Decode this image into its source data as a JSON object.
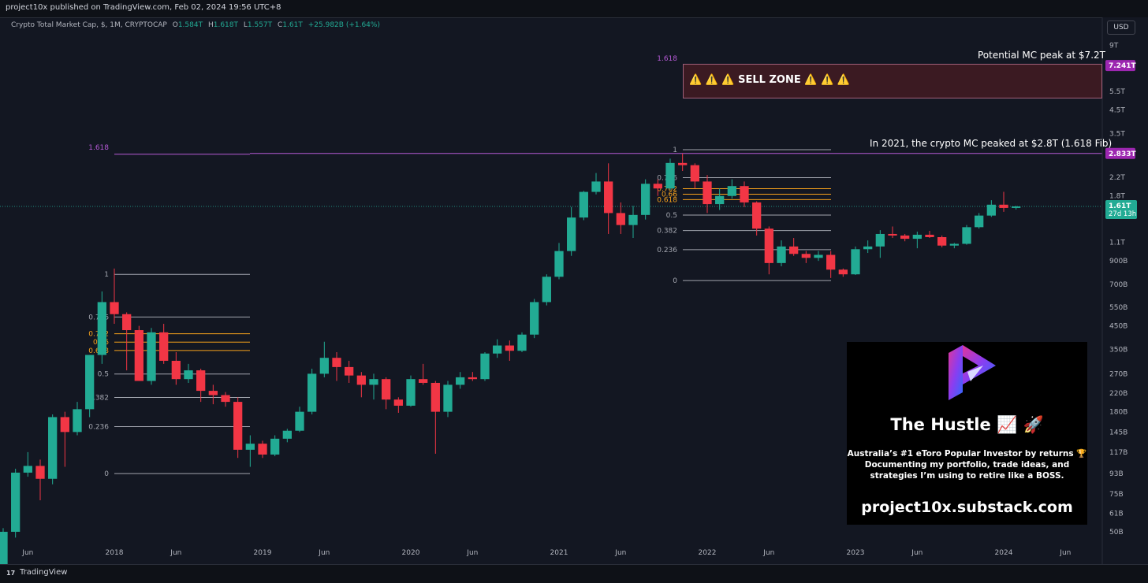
{
  "header": {
    "publisher_text": "project10x published on TradingView.com, Feb 02, 2024 19:56 UTC+8"
  },
  "legend": {
    "symbol": "Crypto Total Market Cap, $, 1M, CRYPTOCAP",
    "o_key": "O",
    "o_val": "1.584T",
    "h_key": "H",
    "h_val": "1.618T",
    "l_key": "L",
    "l_val": "1.557T",
    "c_key": "C",
    "c_val": "1.61T",
    "change": "+25.982B (+1.64%)"
  },
  "price_scale": {
    "currency_button": "USD",
    "ticks": [
      "9T",
      "5.5T",
      "4.5T",
      "3.5T",
      "2.2T",
      "1.8T",
      "1.1T",
      "900B",
      "700B",
      "550B",
      "450B",
      "350B",
      "270B",
      "220B",
      "180B",
      "145B",
      "117B",
      "93B",
      "75B",
      "61B",
      "50B"
    ],
    "price_badge": "1.61T",
    "countdown": "27d 13h",
    "level_badges": [
      "7.241T",
      "2.833T"
    ]
  },
  "time_axis": {
    "labels": [
      "Jun",
      "2018",
      "Jun",
      "2019",
      "Jun",
      "2020",
      "Jun",
      "2021",
      "Jun",
      "2022",
      "Jun",
      "2023",
      "Jun",
      "2024",
      "Jun"
    ]
  },
  "annotations": {
    "peak_2021_text": "In 2021, the crypto MC peaked at $2.8T (1.618 Fib)",
    "potential_peak_text": "Potential MC peak at $7.2T",
    "sell_zone_text": "⚠️ ⚠️ ⚠️ SELL ZONE ⚠️ ⚠️ ⚠️",
    "fib_ext_label_left": "1.618",
    "fib_ext_label_right": "1.618"
  },
  "promo": {
    "title": "The Hustle 📈 🚀",
    "description": "Australia’s #1 eToro Popular Investor by returns 🏆\nDocumenting my portfolio, trade ideas, and\nstrategies I’m using to retire like a BOSS.",
    "url": "project10x.substack.com"
  },
  "footer": {
    "brand": "TradingView",
    "logo_glyph": "17"
  },
  "colors": {
    "up": "#22ab94",
    "down": "#f23645",
    "fib_purple": "#b65ad6",
    "fib_orange": "#f7a21b",
    "background": "#131722"
  },
  "chart_data": {
    "type": "candlestick",
    "title": "Crypto Total Market Cap, $, 1M, CRYPTOCAP",
    "y_scale": "log",
    "ylim": [
      "50B",
      "9T"
    ],
    "candles": [
      {
        "t": "2017-04",
        "o": 0.028,
        "h": 0.052,
        "l": 0.027,
        "c": 0.05
      },
      {
        "t": "2017-05",
        "o": 0.05,
        "h": 0.098,
        "l": 0.047,
        "c": 0.094
      },
      {
        "t": "2017-06",
        "o": 0.094,
        "h": 0.117,
        "l": 0.09,
        "c": 0.101
      },
      {
        "t": "2017-07",
        "o": 0.101,
        "h": 0.108,
        "l": 0.07,
        "c": 0.088
      },
      {
        "t": "2017-08",
        "o": 0.088,
        "h": 0.175,
        "l": 0.083,
        "c": 0.17
      },
      {
        "t": "2017-09",
        "o": 0.17,
        "h": 0.18,
        "l": 0.1,
        "c": 0.145
      },
      {
        "t": "2017-10",
        "o": 0.145,
        "h": 0.2,
        "l": 0.14,
        "c": 0.185
      },
      {
        "t": "2017-11",
        "o": 0.185,
        "h": 0.33,
        "l": 0.17,
        "c": 0.33
      },
      {
        "t": "2017-12",
        "o": 0.33,
        "h": 0.65,
        "l": 0.3,
        "c": 0.58
      },
      {
        "t": "2018-01",
        "o": 0.58,
        "h": 0.83,
        "l": 0.46,
        "c": 0.51
      },
      {
        "t": "2018-02",
        "o": 0.51,
        "h": 0.52,
        "l": 0.28,
        "c": 0.43
      },
      {
        "t": "2018-03",
        "o": 0.43,
        "h": 0.45,
        "l": 0.25,
        "c": 0.25
      },
      {
        "t": "2018-04",
        "o": 0.25,
        "h": 0.44,
        "l": 0.24,
        "c": 0.42
      },
      {
        "t": "2018-05",
        "o": 0.42,
        "h": 0.46,
        "l": 0.3,
        "c": 0.31
      },
      {
        "t": "2018-06",
        "o": 0.31,
        "h": 0.34,
        "l": 0.24,
        "c": 0.255
      },
      {
        "t": "2018-07",
        "o": 0.255,
        "h": 0.3,
        "l": 0.245,
        "c": 0.28
      },
      {
        "t": "2018-08",
        "o": 0.28,
        "h": 0.285,
        "l": 0.2,
        "c": 0.225
      },
      {
        "t": "2018-09",
        "o": 0.225,
        "h": 0.24,
        "l": 0.195,
        "c": 0.215
      },
      {
        "t": "2018-10",
        "o": 0.215,
        "h": 0.222,
        "l": 0.19,
        "c": 0.2
      },
      {
        "t": "2018-11",
        "o": 0.2,
        "h": 0.21,
        "l": 0.11,
        "c": 0.12
      },
      {
        "t": "2018-12",
        "o": 0.12,
        "h": 0.14,
        "l": 0.1,
        "c": 0.128
      },
      {
        "t": "2019-01",
        "o": 0.128,
        "h": 0.132,
        "l": 0.11,
        "c": 0.114
      },
      {
        "t": "2019-02",
        "o": 0.114,
        "h": 0.14,
        "l": 0.112,
        "c": 0.135
      },
      {
        "t": "2019-03",
        "o": 0.135,
        "h": 0.15,
        "l": 0.13,
        "c": 0.147
      },
      {
        "t": "2019-04",
        "o": 0.147,
        "h": 0.19,
        "l": 0.145,
        "c": 0.18
      },
      {
        "t": "2019-05",
        "o": 0.18,
        "h": 0.285,
        "l": 0.175,
        "c": 0.27
      },
      {
        "t": "2019-06",
        "o": 0.27,
        "h": 0.38,
        "l": 0.26,
        "c": 0.32
      },
      {
        "t": "2019-07",
        "o": 0.32,
        "h": 0.34,
        "l": 0.25,
        "c": 0.29
      },
      {
        "t": "2019-08",
        "o": 0.29,
        "h": 0.31,
        "l": 0.245,
        "c": 0.265
      },
      {
        "t": "2019-09",
        "o": 0.265,
        "h": 0.275,
        "l": 0.21,
        "c": 0.24
      },
      {
        "t": "2019-10",
        "o": 0.24,
        "h": 0.27,
        "l": 0.205,
        "c": 0.255
      },
      {
        "t": "2019-11",
        "o": 0.255,
        "h": 0.26,
        "l": 0.185,
        "c": 0.205
      },
      {
        "t": "2019-12",
        "o": 0.205,
        "h": 0.21,
        "l": 0.178,
        "c": 0.192
      },
      {
        "t": "2020-01",
        "o": 0.192,
        "h": 0.265,
        "l": 0.19,
        "c": 0.255
      },
      {
        "t": "2020-02",
        "o": 0.255,
        "h": 0.3,
        "l": 0.24,
        "c": 0.245
      },
      {
        "t": "2020-03",
        "o": 0.245,
        "h": 0.25,
        "l": 0.115,
        "c": 0.18
      },
      {
        "t": "2020-04",
        "o": 0.18,
        "h": 0.25,
        "l": 0.17,
        "c": 0.24
      },
      {
        "t": "2020-05",
        "o": 0.24,
        "h": 0.275,
        "l": 0.23,
        "c": 0.26
      },
      {
        "t": "2020-06",
        "o": 0.26,
        "h": 0.275,
        "l": 0.25,
        "c": 0.255
      },
      {
        "t": "2020-07",
        "o": 0.255,
        "h": 0.34,
        "l": 0.25,
        "c": 0.335
      },
      {
        "t": "2020-08",
        "o": 0.335,
        "h": 0.39,
        "l": 0.32,
        "c": 0.365
      },
      {
        "t": "2020-09",
        "o": 0.365,
        "h": 0.385,
        "l": 0.31,
        "c": 0.345
      },
      {
        "t": "2020-10",
        "o": 0.345,
        "h": 0.42,
        "l": 0.34,
        "c": 0.41
      },
      {
        "t": "2020-11",
        "o": 0.41,
        "h": 0.6,
        "l": 0.395,
        "c": 0.58
      },
      {
        "t": "2020-12",
        "o": 0.58,
        "h": 0.78,
        "l": 0.56,
        "c": 0.76
      },
      {
        "t": "2021-01",
        "o": 0.76,
        "h": 1.09,
        "l": 0.74,
        "c": 1.0
      },
      {
        "t": "2021-02",
        "o": 1.0,
        "h": 1.6,
        "l": 0.95,
        "c": 1.43
      },
      {
        "t": "2021-03",
        "o": 1.43,
        "h": 1.9,
        "l": 1.39,
        "c": 1.88
      },
      {
        "t": "2021-04",
        "o": 1.88,
        "h": 2.3,
        "l": 1.83,
        "c": 2.1
      },
      {
        "t": "2021-05",
        "o": 2.1,
        "h": 2.55,
        "l": 1.2,
        "c": 1.5
      },
      {
        "t": "2021-06",
        "o": 1.5,
        "h": 1.68,
        "l": 1.2,
        "c": 1.32
      },
      {
        "t": "2021-07",
        "o": 1.32,
        "h": 1.62,
        "l": 1.15,
        "c": 1.47
      },
      {
        "t": "2021-08",
        "o": 1.47,
        "h": 2.15,
        "l": 1.4,
        "c": 2.05
      },
      {
        "t": "2021-09",
        "o": 2.05,
        "h": 2.15,
        "l": 1.8,
        "c": 1.95
      },
      {
        "t": "2021-10",
        "o": 1.95,
        "h": 2.68,
        "l": 1.92,
        "c": 2.56
      },
      {
        "t": "2021-11",
        "o": 2.56,
        "h": 2.833,
        "l": 2.35,
        "c": 2.5
      },
      {
        "t": "2021-12",
        "o": 2.5,
        "h": 2.55,
        "l": 1.95,
        "c": 2.1
      },
      {
        "t": "2022-01",
        "o": 2.1,
        "h": 2.25,
        "l": 1.5,
        "c": 1.65
      },
      {
        "t": "2022-02",
        "o": 1.65,
        "h": 1.95,
        "l": 1.55,
        "c": 1.8
      },
      {
        "t": "2022-03",
        "o": 1.8,
        "h": 2.15,
        "l": 1.75,
        "c": 2.0
      },
      {
        "t": "2022-04",
        "o": 2.0,
        "h": 2.1,
        "l": 1.6,
        "c": 1.68
      },
      {
        "t": "2022-05",
        "o": 1.68,
        "h": 1.7,
        "l": 1.18,
        "c": 1.27
      },
      {
        "t": "2022-06",
        "o": 1.27,
        "h": 1.3,
        "l": 0.78,
        "c": 0.88
      },
      {
        "t": "2022-07",
        "o": 0.88,
        "h": 1.12,
        "l": 0.85,
        "c": 1.05
      },
      {
        "t": "2022-08",
        "o": 1.05,
        "h": 1.15,
        "l": 0.95,
        "c": 0.97
      },
      {
        "t": "2022-09",
        "o": 0.97,
        "h": 1.0,
        "l": 0.88,
        "c": 0.93
      },
      {
        "t": "2022-10",
        "o": 0.93,
        "h": 1.0,
        "l": 0.9,
        "c": 0.96
      },
      {
        "t": "2022-11",
        "o": 0.96,
        "h": 1.0,
        "l": 0.75,
        "c": 0.82
      },
      {
        "t": "2022-12",
        "o": 0.82,
        "h": 0.83,
        "l": 0.76,
        "c": 0.78
      },
      {
        "t": "2023-01",
        "o": 0.78,
        "h": 1.05,
        "l": 0.775,
        "c": 1.02
      },
      {
        "t": "2023-02",
        "o": 1.02,
        "h": 1.12,
        "l": 0.98,
        "c": 1.05
      },
      {
        "t": "2023-03",
        "o": 1.05,
        "h": 1.25,
        "l": 0.93,
        "c": 1.2
      },
      {
        "t": "2023-04",
        "o": 1.2,
        "h": 1.3,
        "l": 1.15,
        "c": 1.18
      },
      {
        "t": "2023-05",
        "o": 1.18,
        "h": 1.2,
        "l": 1.11,
        "c": 1.14
      },
      {
        "t": "2023-06",
        "o": 1.14,
        "h": 1.23,
        "l": 1.03,
        "c": 1.19
      },
      {
        "t": "2023-07",
        "o": 1.19,
        "h": 1.24,
        "l": 1.15,
        "c": 1.16
      },
      {
        "t": "2023-08",
        "o": 1.16,
        "h": 1.18,
        "l": 1.04,
        "c": 1.06
      },
      {
        "t": "2023-09",
        "o": 1.06,
        "h": 1.09,
        "l": 1.03,
        "c": 1.08
      },
      {
        "t": "2023-10",
        "o": 1.08,
        "h": 1.32,
        "l": 1.07,
        "c": 1.29
      },
      {
        "t": "2023-11",
        "o": 1.29,
        "h": 1.5,
        "l": 1.27,
        "c": 1.46
      },
      {
        "t": "2023-12",
        "o": 1.46,
        "h": 1.72,
        "l": 1.44,
        "c": 1.64
      },
      {
        "t": "2024-01",
        "o": 1.64,
        "h": 1.88,
        "l": 1.52,
        "c": 1.584
      },
      {
        "t": "2024-02",
        "o": 1.584,
        "h": 1.618,
        "l": 1.557,
        "c": 1.61
      }
    ],
    "fib_retracement_2018": {
      "from": "2018-01",
      "to": "2018-12",
      "levels": [
        "1",
        "0.786",
        "0.702",
        "0.66",
        "0.618",
        "0.5",
        "0.382",
        "0.236",
        "0"
      ]
    },
    "fib_retracement_2021": {
      "from": "2021-11",
      "to": "2022-12",
      "levels": [
        "1",
        "0.786",
        "0.702",
        "0.66",
        "0.618",
        "0.5",
        "0.382",
        "0.236",
        "0"
      ]
    },
    "horizontal_levels": [
      {
        "value": "2.833T",
        "label": "1.618"
      },
      {
        "value": "7.241T",
        "label": "1.618"
      }
    ],
    "last_price": "1.61T"
  }
}
